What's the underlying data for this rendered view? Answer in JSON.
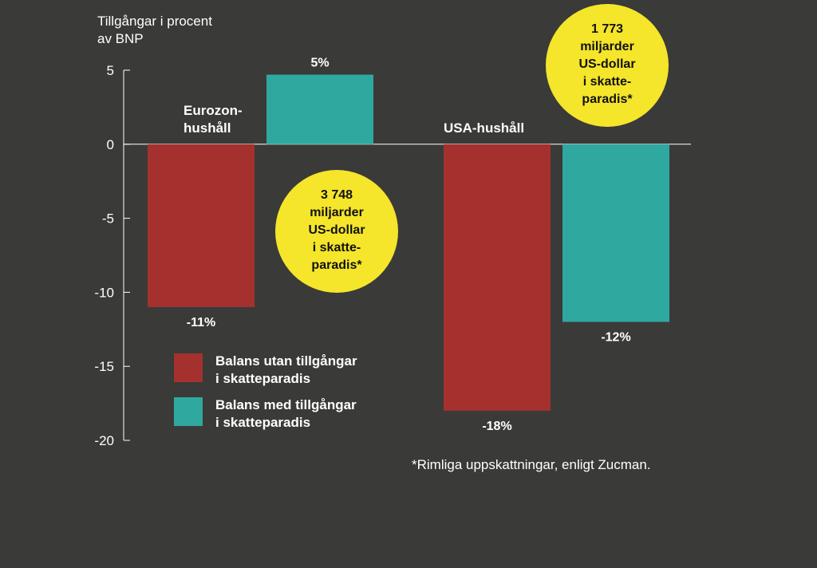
{
  "chart_data": {
    "type": "bar",
    "ylabel_lines": [
      "Tillgångar i procent",
      "av BNP"
    ],
    "ylim": [
      -20,
      5
    ],
    "yticks": [
      5,
      0,
      -5,
      -10,
      -15,
      -20
    ],
    "grid": false,
    "series": [
      {
        "name_lines": [
          "Balans utan tillgångar",
          "i skatteparadis"
        ],
        "color": "#a5312f"
      },
      {
        "name_lines": [
          "Balans med tillgångar",
          "i skatteparadis"
        ],
        "color": "#2fa8a0"
      }
    ],
    "groups": [
      {
        "label_lines": [
          "Eurozon-",
          "hushåll"
        ],
        "values": [
          -11,
          4.7
        ],
        "value_labels": [
          "-11%",
          "5%"
        ],
        "bubble_lines": [
          "3 748",
          "miljarder",
          "US-dollar",
          "i skatte-",
          "paradis*"
        ]
      },
      {
        "label_lines": [
          "USA-hushåll"
        ],
        "values": [
          -18,
          -12
        ],
        "value_labels": [
          "-18%",
          "-12%"
        ],
        "bubble_lines": [
          "1 773",
          "miljarder",
          "US-dollar",
          "i skatte-",
          "paradis*"
        ]
      }
    ],
    "bubble_color": "#f5e52b",
    "footnote": "*Rimliga uppskattningar, enligt Zucman."
  }
}
